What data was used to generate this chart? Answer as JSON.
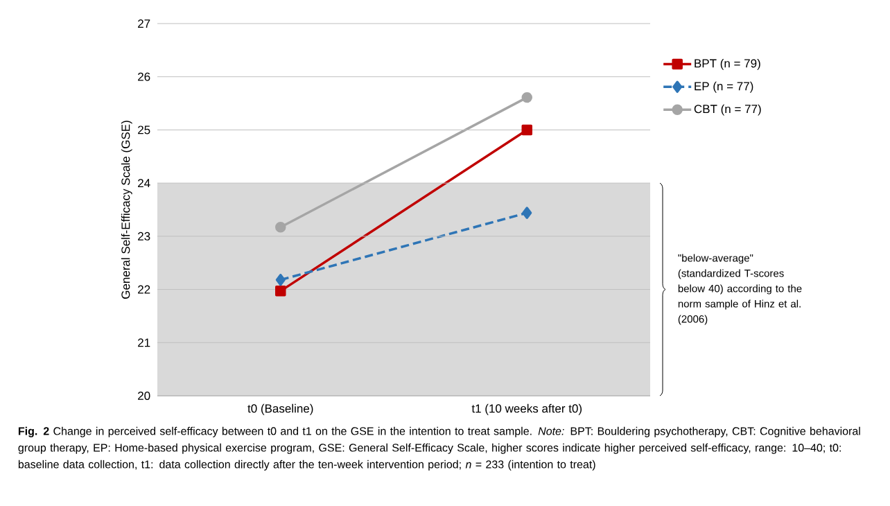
{
  "chart_data": {
    "type": "line",
    "ylabel": "General Self-Efficacy Scale (GSE)",
    "categories": [
      "t0 (Baseline)",
      "t1 (10 weeks after t0)"
    ],
    "series": [
      {
        "name": "BPT (n = 79)",
        "color": "#c00000",
        "values": [
          21.97,
          25.0
        ],
        "marker": "square",
        "line_style": "solid"
      },
      {
        "name": "EP (n = 77)",
        "color": "#2e75b6",
        "values": [
          22.18,
          23.44
        ],
        "marker": "diamond",
        "line_style": "dashed"
      },
      {
        "name": "CBT (n = 77)",
        "color": "#a5a5a5",
        "values": [
          23.17,
          25.61
        ],
        "marker": "circle",
        "line_style": "solid"
      }
    ],
    "ylim": [
      20,
      27
    ],
    "yticks": [
      20,
      21,
      22,
      23,
      24,
      25,
      26,
      27
    ],
    "grid": "y",
    "legend": "right",
    "bands": [
      {
        "axis": "y",
        "from": 20,
        "to": 24,
        "color": "#d9d9d9",
        "label": "\"below-average\" (standardized T-scores below 40) according to the norm sample of Hinz et al. (2006)"
      }
    ],
    "annotations": [
      "**Fig. 2** Change in perceived self-efficacy between t0 and t1 on the GSE in the intention to treat sample. *Note:* BPT: Bouldering psychotherapy, CBT: Cognitive behavioral group therapy, EP: Home-based physical exercise program, GSE: General Self-Efficacy Scale, higher scores indicate higher perceived self-efficacy, range: 10–40; t0: baseline data collection, t1: data collection directly after the ten-week intervention period; *n* = 233 (intention to treat)"
    ]
  }
}
